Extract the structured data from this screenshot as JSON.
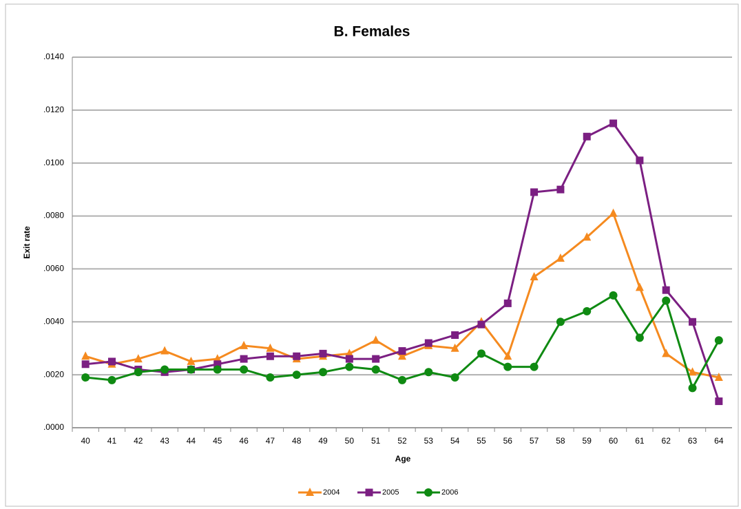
{
  "chart_data": {
    "type": "line",
    "title": "B. Females",
    "x_label": "Age",
    "y_label": "Exit rate",
    "categories": [
      "40",
      "41",
      "42",
      "43",
      "44",
      "45",
      "46",
      "47",
      "48",
      "49",
      "50",
      "51",
      "52",
      "53",
      "54",
      "55",
      "56",
      "57",
      "58",
      "59",
      "60",
      "61",
      "62",
      "63",
      "64"
    ],
    "series": [
      {
        "name": "2004",
        "color": "#f58a1f",
        "marker": "triangle",
        "values": [
          0.0027,
          0.0024,
          0.0026,
          0.0029,
          0.0025,
          0.0026,
          0.0031,
          0.003,
          0.0026,
          0.0027,
          0.0028,
          0.0033,
          0.0027,
          0.0031,
          0.003,
          0.004,
          0.0027,
          0.0057,
          0.0064,
          0.0072,
          0.0081,
          0.0053,
          0.0028,
          0.0021,
          0.0019
        ]
      },
      {
        "name": "2005",
        "color": "#7b1f82",
        "marker": "square",
        "values": [
          0.0024,
          0.0025,
          0.0022,
          0.0021,
          0.0022,
          0.0024,
          0.0026,
          0.0027,
          0.0027,
          0.0028,
          0.0026,
          0.0026,
          0.0029,
          0.0032,
          0.0035,
          0.0039,
          0.0047,
          0.0089,
          0.009,
          0.011,
          0.0115,
          0.0101,
          0.0052,
          0.004,
          0.001
        ]
      },
      {
        "name": "2006",
        "color": "#0f8a12",
        "marker": "circle",
        "values": [
          0.0019,
          0.0018,
          0.0021,
          0.0022,
          0.0022,
          0.0022,
          0.0022,
          0.0019,
          0.002,
          0.0021,
          0.0023,
          0.0022,
          0.0018,
          0.0021,
          0.0019,
          0.0028,
          0.0023,
          0.0023,
          0.004,
          0.0044,
          0.005,
          0.0034,
          0.0048,
          0.0015,
          0.0033
        ]
      }
    ],
    "ylim": [
      0,
      0.014
    ],
    "yticks": [
      {
        "value": 0,
        "label": ".0000"
      },
      {
        "value": 0.002,
        "label": ".0020"
      },
      {
        "value": 0.004,
        "label": ".0040"
      },
      {
        "value": 0.006,
        "label": ".0060"
      },
      {
        "value": 0.008,
        "label": ".0080"
      },
      {
        "value": 0.01,
        "label": ".0100"
      },
      {
        "value": 0.012,
        "label": ".0120"
      },
      {
        "value": 0.014,
        "label": ".0140"
      }
    ],
    "grid": true
  }
}
